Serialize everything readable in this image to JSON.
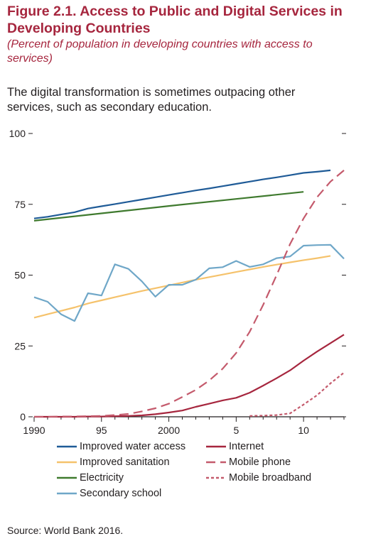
{
  "header": {
    "title": "Figure 2.1. Access to Public and Digital Services in Developing Countries",
    "subtitle": "(Percent of population in developing countries with access to services)",
    "lede": "The digital transformation is sometimes outpacing other services, such as secondary education."
  },
  "source": "Source: World Bank 2016.",
  "colors": {
    "water": "#1f5b97",
    "sanitation": "#f5c26b",
    "electricity": "#3f7a2e",
    "secondary": "#6fa7c8",
    "internet": "#a6263e",
    "mobile": "#c45a6c",
    "broadband": "#c45a6c",
    "title": "#a6263e"
  },
  "chart_data": {
    "type": "line",
    "xlabel": "",
    "ylabel": "",
    "xlim": [
      1990,
      2013
    ],
    "ylim": [
      0,
      100
    ],
    "x_ticks": [
      1990,
      1995,
      2000,
      2005,
      2010
    ],
    "x_tick_labels": [
      "1990",
      "95",
      "2000",
      "5",
      "10"
    ],
    "y_ticks": [
      0,
      25,
      50,
      75,
      100
    ],
    "y_tick_labels": [
      "0",
      "25",
      "50",
      "75",
      "100"
    ],
    "legend_position": "bottom",
    "series": [
      {
        "name": "Improved water access",
        "style": "solid",
        "color_key": "water",
        "x": [
          1990,
          1991,
          1992,
          1993,
          1994,
          1995,
          1996,
          1997,
          1998,
          1999,
          2000,
          2001,
          2002,
          2003,
          2004,
          2005,
          2006,
          2007,
          2008,
          2009,
          2010,
          2011,
          2012
        ],
        "y": [
          70,
          70.6,
          71.4,
          72.2,
          73.5,
          74.3,
          75.1,
          75.9,
          76.7,
          77.5,
          78.3,
          79.1,
          79.9,
          80.6,
          81.4,
          82.2,
          83,
          83.8,
          84.5,
          85.3,
          86.1,
          86.5,
          87
        ]
      },
      {
        "name": "Improved sanitation",
        "style": "solid",
        "color_key": "sanitation",
        "x": [
          1990,
          1991,
          1992,
          1993,
          1994,
          1995,
          1996,
          1997,
          1998,
          1999,
          2000,
          2001,
          2002,
          2003,
          2004,
          2005,
          2006,
          2007,
          2008,
          2009,
          2010,
          2011,
          2012
        ],
        "y": [
          35,
          36.2,
          37.4,
          38.6,
          40,
          41.1,
          42.2,
          43.3,
          44.4,
          45.4,
          46.4,
          47.4,
          48.4,
          49.3,
          50.2,
          51.1,
          52,
          52.9,
          53.7,
          54.5,
          55.3,
          56,
          56.8
        ]
      },
      {
        "name": "Electricity",
        "style": "solid",
        "color_key": "electricity",
        "x": [
          1990,
          1995,
          2000,
          2005,
          2010
        ],
        "y": [
          69.2,
          71.8,
          74.4,
          76.9,
          79.4
        ]
      },
      {
        "name": "Secondary school",
        "style": "solid",
        "color_key": "secondary",
        "x": [
          1990,
          1991,
          1992,
          1993,
          1994,
          1995,
          1996,
          1997,
          1998,
          1999,
          2000,
          2001,
          2002,
          2003,
          2004,
          2005,
          2006,
          2007,
          2008,
          2009,
          2010,
          2011,
          2012,
          2013
        ],
        "y": [
          42.2,
          40.6,
          36.2,
          33.8,
          43.6,
          42.8,
          53.8,
          52.2,
          47.8,
          42.4,
          46.6,
          46.6,
          48.4,
          52.4,
          52.8,
          55,
          52.9,
          53.8,
          56,
          56.6,
          60.4,
          60.6,
          60.7,
          55.8
        ]
      },
      {
        "name": "Internet",
        "style": "solid",
        "color_key": "internet",
        "x": [
          1990,
          1991,
          1992,
          1993,
          1994,
          1995,
          1996,
          1997,
          1998,
          1999,
          2000,
          2001,
          2002,
          2003,
          2004,
          2005,
          2006,
          2007,
          2008,
          2009,
          2010,
          2011,
          2012,
          2013
        ],
        "y": [
          0,
          0,
          0,
          0,
          0.1,
          0.1,
          0.2,
          0.3,
          0.5,
          0.9,
          1.5,
          2.2,
          3.5,
          4.6,
          5.8,
          6.7,
          8.5,
          11,
          13.6,
          16.4,
          19.8,
          23,
          26,
          29
        ]
      },
      {
        "name": "Mobile phone",
        "style": "dashed",
        "color_key": "mobile",
        "x": [
          1990,
          1991,
          1992,
          1993,
          1994,
          1995,
          1996,
          1997,
          1998,
          1999,
          2000,
          2001,
          2002,
          2003,
          2004,
          2005,
          2006,
          2007,
          2008,
          2009,
          2010,
          2011,
          2012,
          2013
        ],
        "y": [
          0,
          0,
          0.1,
          0.1,
          0.2,
          0.3,
          0.6,
          1,
          1.9,
          3,
          4.6,
          7,
          9.5,
          12.8,
          17,
          22.5,
          30,
          39.5,
          50,
          61,
          70,
          77.5,
          83,
          87
        ]
      },
      {
        "name": "Mobile broadband",
        "style": "dotted",
        "color_key": "broadband",
        "x": [
          2006,
          2007,
          2008,
          2009,
          2010,
          2011,
          2012,
          2013
        ],
        "y": [
          0.3,
          0.4,
          0.6,
          1.2,
          4.3,
          7.6,
          11.8,
          15.6
        ]
      }
    ]
  },
  "legend": [
    {
      "label": "Improved water access",
      "color_key": "water",
      "style": "solid"
    },
    {
      "label": "Internet",
      "color_key": "internet",
      "style": "solid"
    },
    {
      "label": "Improved sanitation",
      "color_key": "sanitation",
      "style": "solid"
    },
    {
      "label": "Mobile phone",
      "color_key": "mobile",
      "style": "dashed"
    },
    {
      "label": "Electricity",
      "color_key": "electricity",
      "style": "solid"
    },
    {
      "label": "Mobile broadband",
      "color_key": "broadband",
      "style": "dotted"
    },
    {
      "label": "Secondary school",
      "color_key": "secondary",
      "style": "solid"
    }
  ]
}
